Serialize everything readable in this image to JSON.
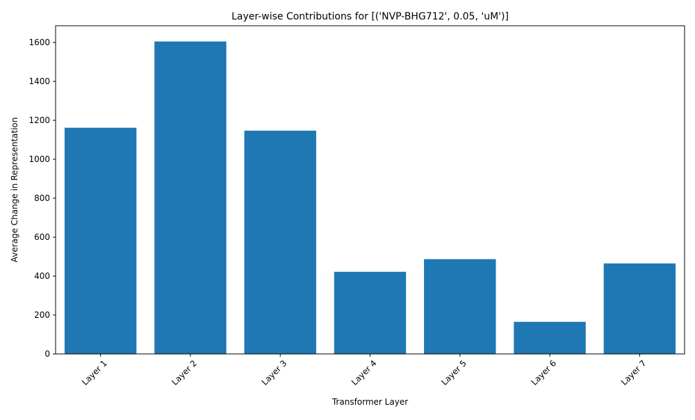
{
  "chart_data": {
    "type": "bar",
    "title": "Layer-wise Contributions for [('NVP-BHG712', 0.05, 'uM')]",
    "xlabel": "Transformer Layer",
    "ylabel": "Average Change in Representation",
    "categories": [
      "Layer 1",
      "Layer 2",
      "Layer 3",
      "Layer 4",
      "Layer 5",
      "Layer 6",
      "Layer 7"
    ],
    "values": [
      1162,
      1605,
      1147,
      422,
      487,
      165,
      465
    ],
    "ylim": [
      0,
      1686
    ],
    "yticks": [
      0,
      200,
      400,
      600,
      800,
      1000,
      1200,
      1400,
      1600
    ],
    "grid": false,
    "legend": "none",
    "bar_color": "#1f77b4",
    "x_tick_rotation_deg": 45
  }
}
